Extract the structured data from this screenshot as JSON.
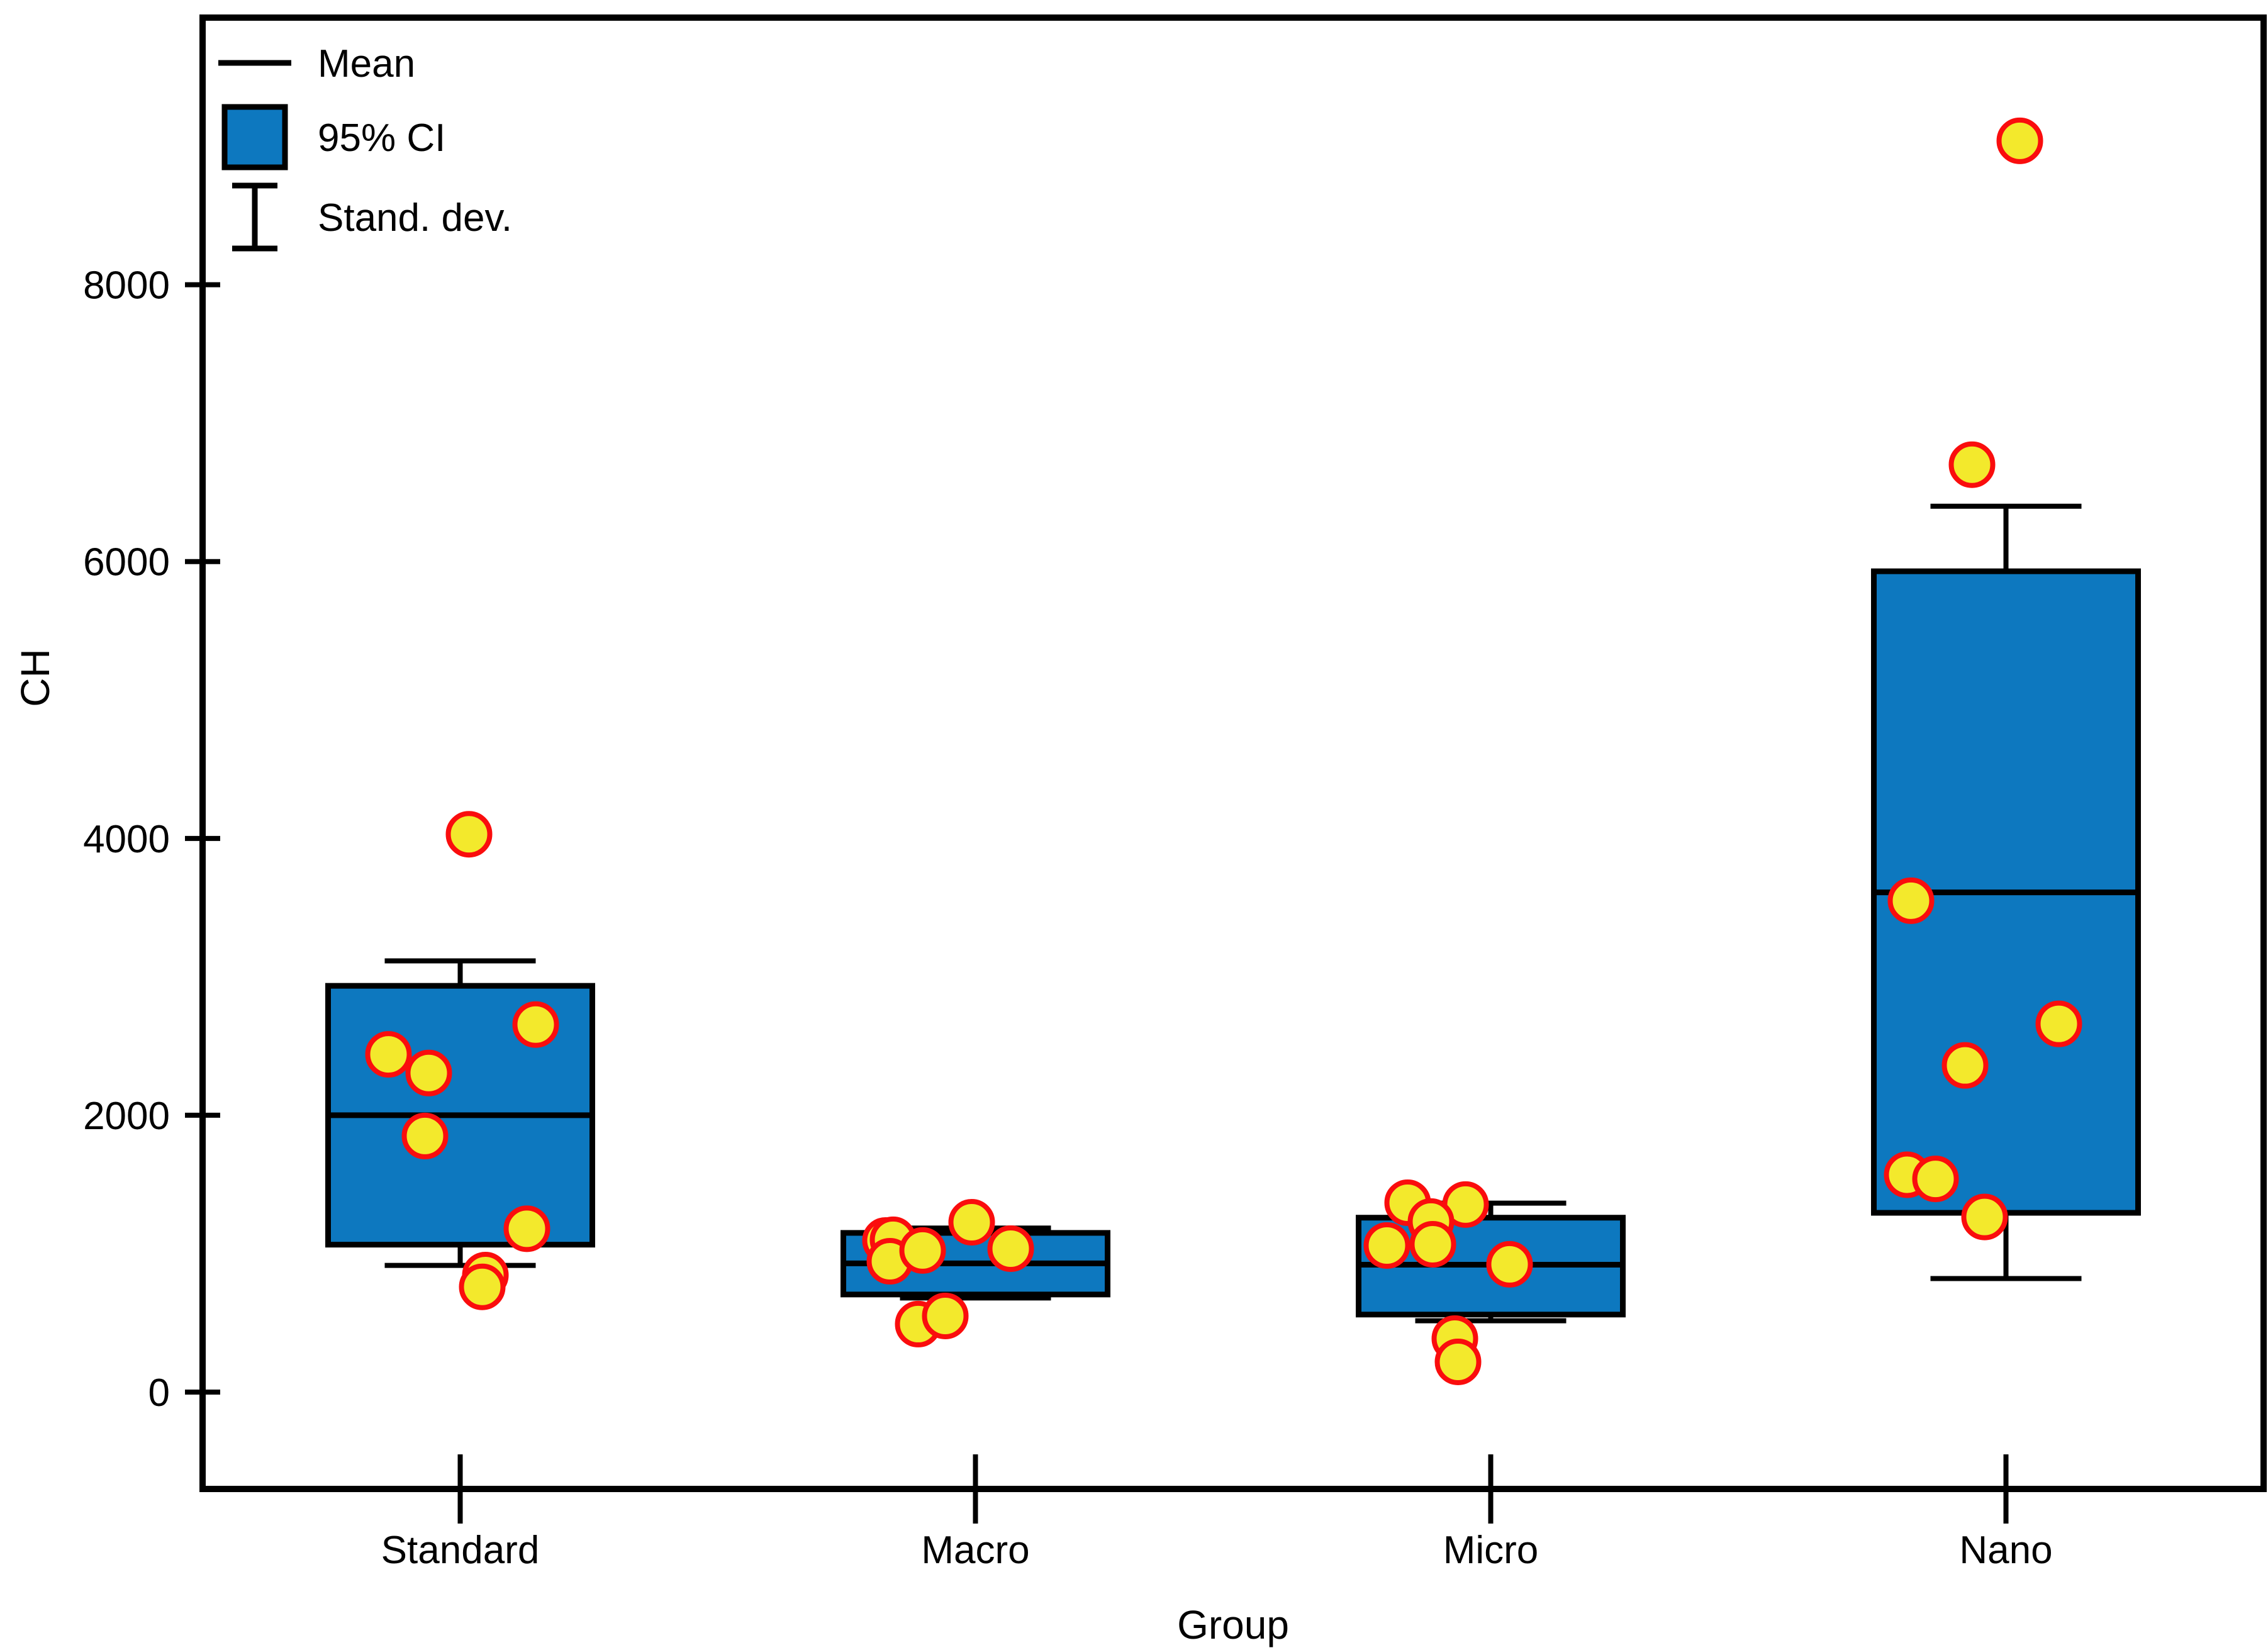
{
  "figure": {
    "name": "grouped-boxplot-mean-ci-sd",
    "background": "#ffffff",
    "colors": {
      "box_fill": "#0d78bf",
      "line": "#000000",
      "point_fill": "#f3e92c",
      "point_stroke": "#fa0d0d"
    }
  },
  "legend": {
    "items": [
      {
        "symbol": "mean-line",
        "label": "Mean"
      },
      {
        "symbol": "ci-box",
        "label": "95% CI"
      },
      {
        "symbol": "sd-errorbar",
        "label": "Stand. dev."
      }
    ]
  },
  "chart_data": {
    "type": "box",
    "title": "",
    "xlabel": "Group",
    "ylabel": "CH",
    "categories": [
      "Standard",
      "Macro",
      "Micro",
      "Nano"
    ],
    "y_ticks": [
      0,
      2000,
      4000,
      6000,
      8000
    ],
    "ylim": [
      -700,
      9930
    ],
    "grid": false,
    "legend_position": "top-left-inside",
    "box_semantics": {
      "box": "95% confidence interval of the mean",
      "center_line": "mean",
      "whiskers": "standard deviation",
      "markers": "individual observations"
    },
    "series": [
      {
        "group": "Standard",
        "mean": 2000,
        "ci_low": 1065,
        "ci_high": 2935,
        "sd_low": 915,
        "sd_high": 3115,
        "points": [
          {
            "dx": 14,
            "y": 4030
          },
          {
            "dx": 120,
            "y": 2655
          },
          {
            "dx": -114,
            "y": 2440
          },
          {
            "dx": -50,
            "y": 2305
          },
          {
            "dx": -56,
            "y": 1850
          },
          {
            "dx": 106,
            "y": 1180
          },
          {
            "dx": 40,
            "y": 845
          },
          {
            "dx": 35,
            "y": 760
          }
        ]
      },
      {
        "group": "Macro",
        "mean": 930,
        "ci_low": 705,
        "ci_high": 1150,
        "sd_low": 680,
        "sd_high": 1185,
        "points": [
          {
            "dx": -143,
            "y": 1095
          },
          {
            "dx": -131,
            "y": 1100
          },
          {
            "dx": -136,
            "y": 945
          },
          {
            "dx": -84,
            "y": 1023
          },
          {
            "dx": -6,
            "y": 1227
          },
          {
            "dx": 56,
            "y": 1036
          },
          {
            "dx": -91,
            "y": 491
          },
          {
            "dx": -48,
            "y": 550
          }
        ]
      },
      {
        "group": "Micro",
        "mean": 920,
        "ci_low": 560,
        "ci_high": 1260,
        "sd_low": 515,
        "sd_high": 1365,
        "points": [
          {
            "dx": -132,
            "y": 1368
          },
          {
            "dx": -40,
            "y": 1355
          },
          {
            "dx": -95,
            "y": 1232
          },
          {
            "dx": -165,
            "y": 1059
          },
          {
            "dx": -92,
            "y": 1068
          },
          {
            "dx": 30,
            "y": 923
          },
          {
            "dx": -57,
            "y": 386
          },
          {
            "dx": -52,
            "y": 218
          }
        ]
      },
      {
        "group": "Nano",
        "mean": 3610,
        "ci_low": 1295,
        "ci_high": 5930,
        "sd_low": 820,
        "sd_high": 6400,
        "points": [
          {
            "dx": 22,
            "y": 9040
          },
          {
            "dx": -54,
            "y": 6700
          },
          {
            "dx": -151,
            "y": 3550
          },
          {
            "dx": 84,
            "y": 2660
          },
          {
            "dx": -65,
            "y": 2360
          },
          {
            "dx": -157,
            "y": 1570
          },
          {
            "dx": -112,
            "y": 1540
          },
          {
            "dx": -34,
            "y": 1265
          }
        ]
      }
    ]
  }
}
